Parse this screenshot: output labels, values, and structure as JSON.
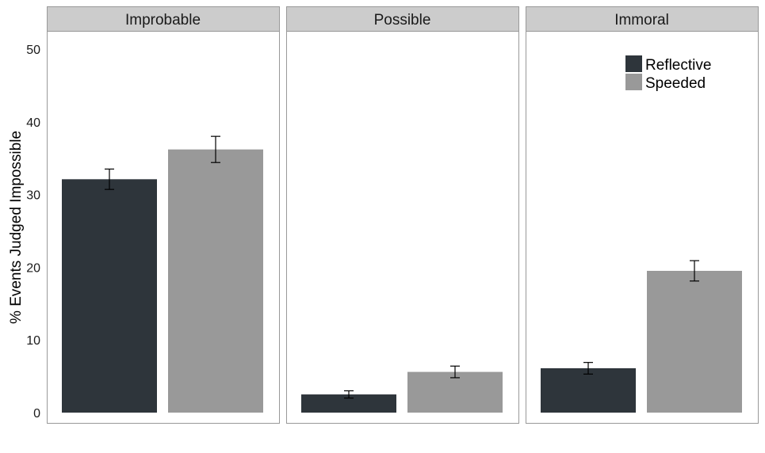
{
  "chart_data": {
    "type": "bar",
    "ylabel": "% Events Judged Impossible",
    "xlabel": "",
    "ylim": [
      0,
      52
    ],
    "yticks": [
      0,
      10,
      20,
      30,
      40,
      50
    ],
    "grid": false,
    "legend_position": "top-right",
    "facets": [
      "Improbable",
      "Possible",
      "Immoral"
    ],
    "series": [
      {
        "name": "Reflective",
        "color": "#2e353b",
        "values": [
          32.1,
          2.5,
          6.1
        ],
        "error": [
          1.4,
          0.5,
          0.8
        ]
      },
      {
        "name": "Speeded",
        "color": "#999999",
        "values": [
          36.2,
          5.6,
          19.5
        ],
        "error": [
          1.8,
          0.8,
          1.4
        ]
      }
    ],
    "strip_fill": "#cccccc",
    "panel_border": "#999999"
  }
}
